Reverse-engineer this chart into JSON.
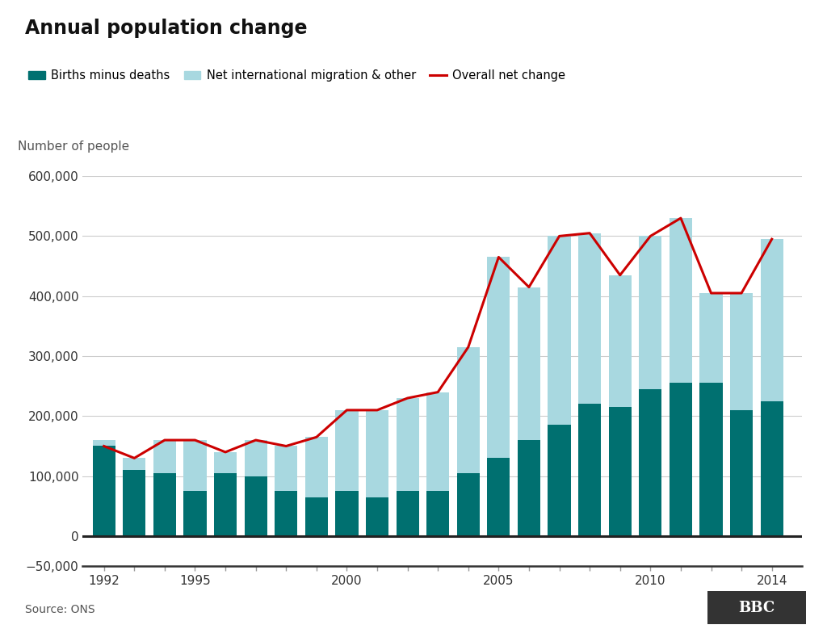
{
  "years": [
    1992,
    1993,
    1994,
    1995,
    1996,
    1997,
    1998,
    1999,
    2000,
    2001,
    2002,
    2003,
    2004,
    2005,
    2006,
    2007,
    2008,
    2009,
    2010,
    2011,
    2012,
    2013,
    2014
  ],
  "births_minus_deaths": [
    160000,
    110000,
    105000,
    75000,
    105000,
    100000,
    75000,
    65000,
    75000,
    65000,
    75000,
    75000,
    105000,
    130000,
    160000,
    185000,
    220000,
    215000,
    245000,
    255000,
    255000,
    210000,
    225000
  ],
  "net_migration": [
    -10000,
    20000,
    55000,
    85000,
    35000,
    60000,
    75000,
    100000,
    135000,
    145000,
    155000,
    165000,
    210000,
    335000,
    255000,
    315000,
    285000,
    220000,
    255000,
    275000,
    150000,
    195000,
    270000
  ],
  "overall_net_change": [
    150000,
    130000,
    160000,
    160000,
    140000,
    160000,
    150000,
    165000,
    210000,
    210000,
    230000,
    240000,
    315000,
    465000,
    415000,
    500000,
    505000,
    435000,
    500000,
    530000,
    405000,
    405000,
    495000
  ],
  "bar_color_births": "#007070",
  "bar_color_migration": "#a8d8e0",
  "line_color": "#cc0000",
  "title": "Annual population change",
  "ylabel": "Number of people",
  "ylim": [
    -50000,
    600000
  ],
  "yticks": [
    -50000,
    0,
    100000,
    200000,
    300000,
    400000,
    500000,
    600000
  ],
  "source": "Source: ONS",
  "background_color": "#ffffff",
  "grid_color": "#cccccc"
}
